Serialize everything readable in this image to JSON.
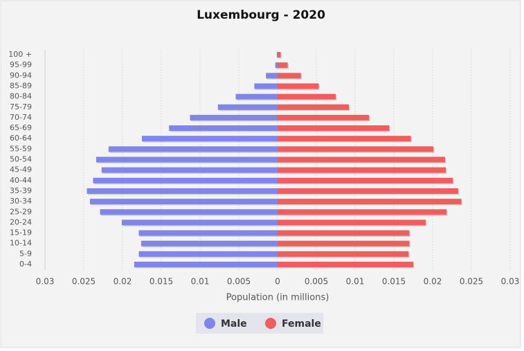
{
  "chart_data": {
    "type": "pyramid",
    "title": "Luxembourg - 2020",
    "x_label": "Population (in millions)",
    "categories": [
      "0-4",
      "5-9",
      "10-14",
      "15-19",
      "20-24",
      "25-29",
      "30-34",
      "35-39",
      "40-44",
      "45-49",
      "50-54",
      "55-59",
      "60-64",
      "65-69",
      "70-74",
      "75-79",
      "80-84",
      "85-89",
      "90-94",
      "95-99",
      "100 +"
    ],
    "series": [
      {
        "name": "Male",
        "color": "#8085e9",
        "values": [
          -0.0185,
          -0.0179,
          -0.0176,
          -0.0179,
          -0.0201,
          -0.0229,
          -0.0242,
          -0.0246,
          -0.0238,
          -0.0227,
          -0.0234,
          -0.0218,
          -0.0175,
          -0.014,
          -0.0113,
          -0.0077,
          -0.0054,
          -0.003,
          -0.0015,
          -0.0003,
          -0.0001
        ]
      },
      {
        "name": "Female",
        "color": "#f15c5c",
        "values": [
          0.0175,
          0.0169,
          0.017,
          0.017,
          0.0191,
          0.0218,
          0.0237,
          0.0233,
          0.0226,
          0.0217,
          0.0216,
          0.0201,
          0.0172,
          0.0144,
          0.0118,
          0.0092,
          0.0075,
          0.0053,
          0.003,
          0.0013,
          0.0004
        ]
      }
    ],
    "xlim": [
      -0.03,
      0.03
    ],
    "xticks": [
      {
        "value": -0.03,
        "label": "0.03"
      },
      {
        "value": -0.025,
        "label": "0.025"
      },
      {
        "value": -0.02,
        "label": "0.02"
      },
      {
        "value": -0.015,
        "label": "0.015"
      },
      {
        "value": -0.01,
        "label": "0.01"
      },
      {
        "value": -0.005,
        "label": "0.005"
      },
      0,
      0.005,
      0.01,
      0.015,
      0.02,
      0.025,
      0.03
    ],
    "grid": true
  }
}
